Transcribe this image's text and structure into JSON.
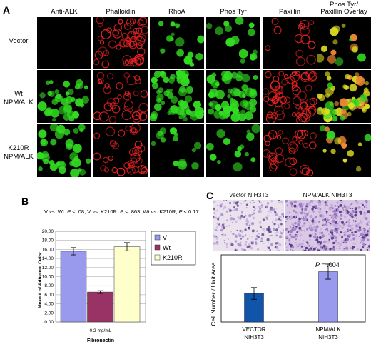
{
  "panel_a": {
    "letter": "A",
    "columns": [
      "Anti-ALK",
      "Phalloidin",
      "RhoA",
      "Phos Tyr",
      "Paxillin"
    ],
    "overlay_col": {
      "line1": "Phos Tyr/",
      "line2": "Paxillin Overlay"
    },
    "rows": [
      {
        "line1": "Vector",
        "line2": ""
      },
      {
        "line1": "Wt",
        "line2": "NPM/ALK"
      },
      {
        "line1": "K210R",
        "line2": "NPM/ALK"
      }
    ],
    "colors": {
      "green": "#33dd22",
      "red": "#ee2222",
      "yellow": "#dddd22",
      "black": "#000000"
    }
  },
  "panel_b": {
    "letter": "B",
    "stats": {
      "s1": "V vs. Wt: ",
      "p1": "P",
      "v1": " < .08; V vs. K210R: ",
      "p2": "P",
      "v2": " < .863; Wt vs. K210R; ",
      "p3": "P",
      "v3": " < 0.17"
    },
    "xtick": "0.2 mg/mL",
    "xlabel_bottom": "Fibronectin"
  },
  "panel_c": {
    "letter": "C",
    "photo_left_title": "vector NIH3T3",
    "photo_right_title": "NPM/ALK NIH3T3",
    "pvalue_label": "P",
    "pvalue_value": " = .004",
    "cat1_line1": "VECTOR",
    "cat1_line2": "NIH3T3",
    "cat2_line1": "NPM/ALK",
    "cat2_line2": "NIH3T3"
  },
  "chart_data": [
    {
      "type": "bar",
      "title": "",
      "categories": [
        "0.2 mg/mL"
      ],
      "series": [
        {
          "name": "V",
          "values": [
            15.6
          ],
          "error": [
            0.8
          ],
          "color": "#9999ee"
        },
        {
          "name": "Wt",
          "values": [
            6.6
          ],
          "error": [
            0.3
          ],
          "color": "#993366"
        },
        {
          "name": "K210R",
          "values": [
            16.6
          ],
          "error": [
            0.9
          ],
          "color": "#ffffcc"
        }
      ],
      "xlabel": "Fibronectin",
      "ylabel": "Mean # of Adherent Cells:",
      "ylim": [
        0,
        20
      ],
      "yticks": [
        "0.00",
        "2.00",
        "4.00",
        "6.00",
        "8.00",
        "10.00",
        "12.00",
        "14.00",
        "16.00",
        "18.00",
        "20.00"
      ],
      "grid": true,
      "legend": "right"
    },
    {
      "type": "bar",
      "title": "",
      "categories": [
        "VECTOR NIH3T3",
        "NPM/ALK NIH3T3"
      ],
      "values": [
        17,
        30
      ],
      "error": [
        3.5,
        4.5
      ],
      "colors": [
        "#1155aa",
        "#9999ee"
      ],
      "ylabel": "Cell Number / Unit Area",
      "ylim": [
        0,
        40
      ],
      "annotation": "P = .004"
    }
  ]
}
